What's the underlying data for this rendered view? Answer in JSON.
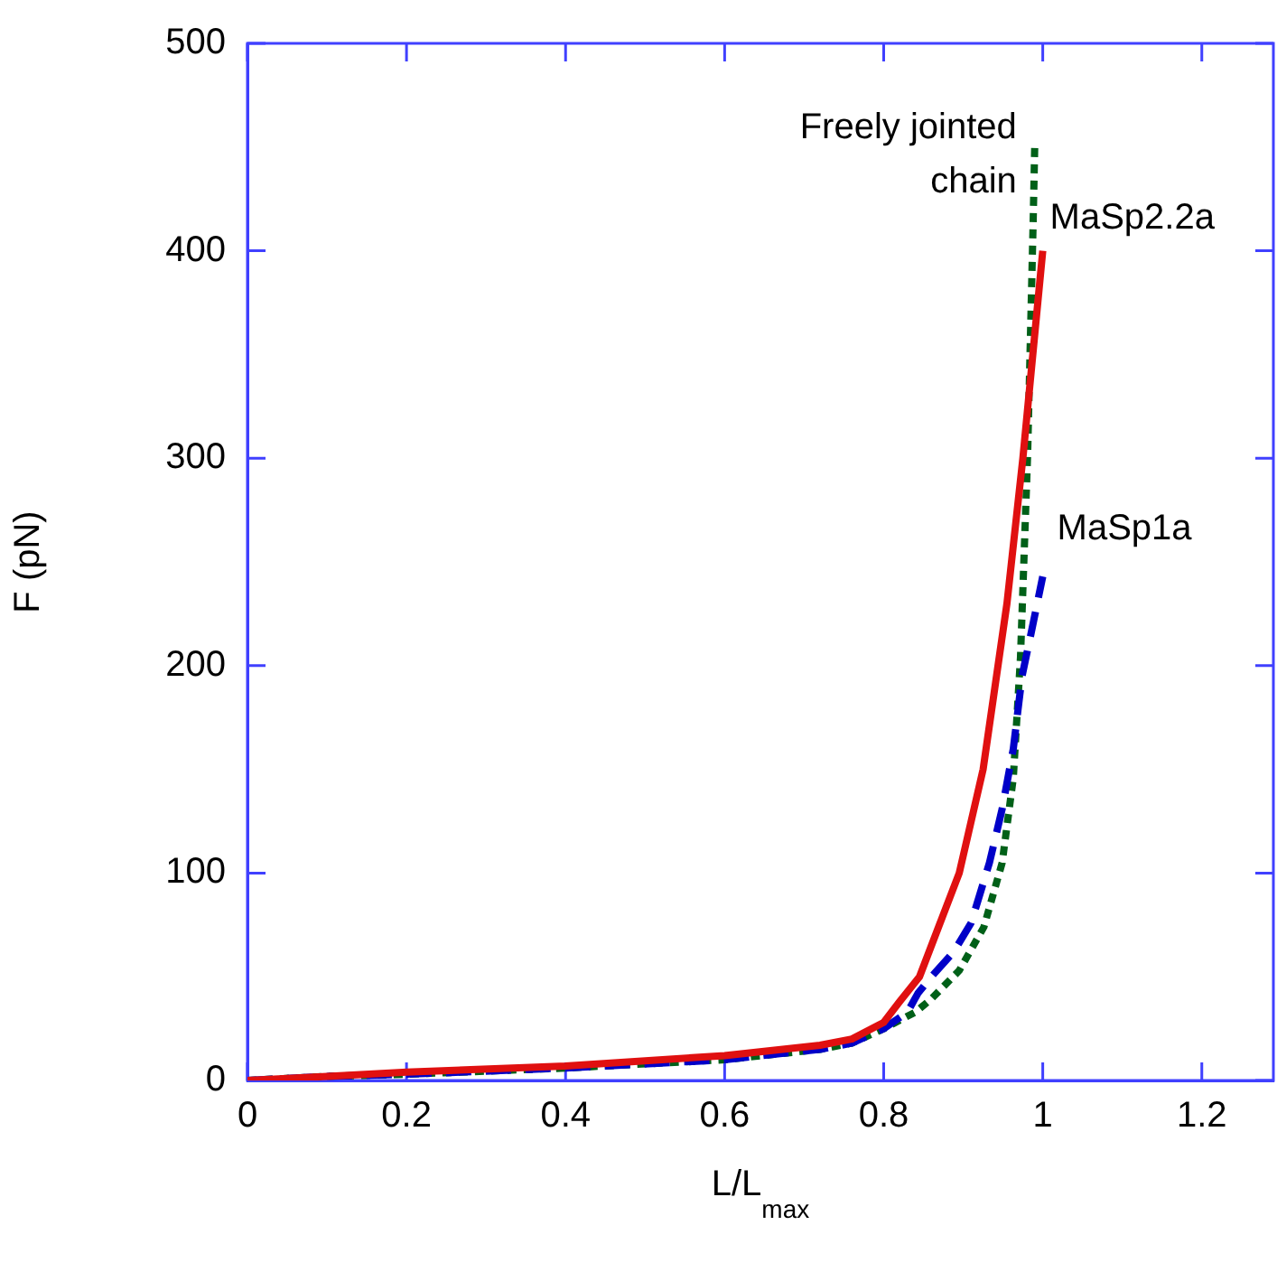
{
  "chart_data": {
    "type": "line",
    "xlabel": "L/L$_{max}$",
    "ylabel": "F (pN)",
    "xlim": [
      0,
      1.29
    ],
    "ylim": [
      0,
      500
    ],
    "xticks": [
      0,
      0.2,
      0.4,
      0.6,
      0.8,
      1,
      1.2
    ],
    "yticks": [
      0,
      100,
      200,
      300,
      400,
      500
    ],
    "grid": false,
    "legend": false,
    "marker": "none",
    "series": [
      {
        "name": "MaSp2.2a",
        "color": "#e01010",
        "line_style": "solid",
        "x": [
          0,
          0.1,
          0.2,
          0.4,
          0.6,
          0.72,
          0.76,
          0.8,
          0.82,
          0.845,
          0.87,
          0.895,
          0.925,
          0.955,
          0.975,
          1
        ],
        "values": [
          0,
          2,
          4,
          7,
          12,
          17,
          20,
          28,
          38,
          50,
          75,
          100,
          150,
          230,
          300,
          400
        ]
      },
      {
        "name": "MaSp1a",
        "color": "#0000c8",
        "line_style": "dashed",
        "x": [
          0,
          0.1,
          0.2,
          0.4,
          0.6,
          0.72,
          0.76,
          0.8,
          0.83,
          0.843,
          0.86,
          0.888,
          0.91,
          0.933,
          0.949,
          0.963,
          0.974,
          0.985,
          1
        ],
        "values": [
          0,
          2,
          3,
          6,
          10,
          15,
          18,
          25,
          33,
          42,
          50,
          62,
          76,
          105,
          131,
          160,
          195,
          215,
          243
        ]
      },
      {
        "name": "Freely jointed chain",
        "color": "#006018",
        "line_style": "dotted",
        "x": [
          0,
          0.1,
          0.2,
          0.4,
          0.6,
          0.72,
          0.76,
          0.8,
          0.84,
          0.859,
          0.895,
          0.926,
          0.949,
          0.963,
          0.972,
          0.981,
          0.988,
          0.99
        ],
        "values": [
          0,
          2,
          3,
          6,
          10,
          15,
          18,
          25,
          33,
          39,
          53,
          74,
          105,
          146,
          204,
          302,
          415,
          452
        ]
      }
    ]
  }
}
